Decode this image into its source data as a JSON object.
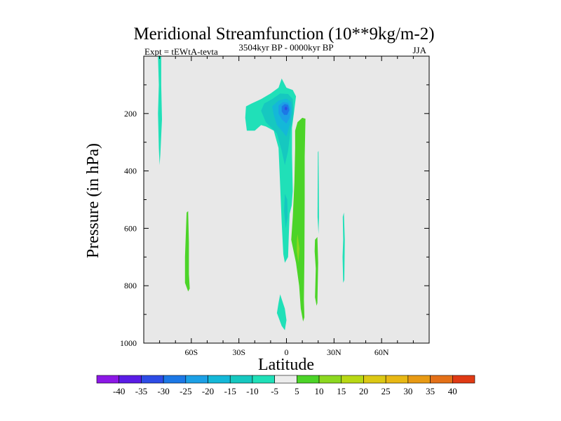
{
  "chart_data": {
    "type": "filled-contour",
    "title": "Meridional Streamfunction (10**9kg/m-2)",
    "subtitle": "3504kyr BP - 0000kyr BP",
    "left_label": "Expt = tEWtA-tevta",
    "right_label": "JJA",
    "xlabel": "Latitude",
    "ylabel": "Pressure (in hPa)",
    "xlim": [
      -90,
      90
    ],
    "ylim": [
      1000,
      0
    ],
    "x_ticks": [
      {
        "value": -60,
        "label": "60S"
      },
      {
        "value": -30,
        "label": "30S"
      },
      {
        "value": 0,
        "label": "0"
      },
      {
        "value": 30,
        "label": "30N"
      },
      {
        "value": 60,
        "label": "60N"
      }
    ],
    "y_ticks": [
      {
        "value": 200,
        "label": "200"
      },
      {
        "value": 400,
        "label": "400"
      },
      {
        "value": 600,
        "label": "600"
      },
      {
        "value": 800,
        "label": "800"
      },
      {
        "value": 1000,
        "label": "1000"
      }
    ],
    "background_color": "#e8e8e8",
    "colorbar": {
      "levels": [
        "-40",
        "-35",
        "-30",
        "-25",
        "-20",
        "-15",
        "-10",
        "-5",
        "5",
        "10",
        "15",
        "20",
        "25",
        "30",
        "35",
        "40"
      ],
      "colors": [
        "#8c18e6",
        "#5a1ce6",
        "#2d4ce6",
        "#1c78e6",
        "#1ca0e6",
        "#14b8d8",
        "#16c8c0",
        "#20e0b8",
        "#ececec",
        "#4cd428",
        "#8cd820",
        "#b8d814",
        "#dcc814",
        "#e8b814",
        "#e89a14",
        "#e47018",
        "#e03a14"
      ]
    },
    "regions": [
      {
        "name": "far-south-upper-negative",
        "value": -5,
        "color": "#20e0b8",
        "points": [
          [
            -81,
            0
          ],
          [
            -79,
            0
          ],
          [
            -79,
            100
          ],
          [
            -78.5,
            220
          ],
          [
            -79.5,
            340
          ],
          [
            -80,
            380
          ],
          [
            -80.5,
            320
          ],
          [
            -81,
            200
          ],
          [
            -80.5,
            100
          ]
        ]
      },
      {
        "name": "upper-tropical-negative",
        "value": -5,
        "color": "#20e0b8",
        "points": [
          [
            -26,
            215
          ],
          [
            -25.5,
            175
          ],
          [
            -22,
            165
          ],
          [
            -16,
            150
          ],
          [
            -10,
            130
          ],
          [
            -5,
            110
          ],
          [
            -3,
            78
          ],
          [
            0,
            110
          ],
          [
            4,
            118
          ],
          [
            6,
            140
          ],
          [
            5,
            185
          ],
          [
            3.5,
            250
          ],
          [
            3.5,
            340
          ],
          [
            4,
            470
          ],
          [
            3.3,
            520
          ],
          [
            2,
            550
          ],
          [
            1.5,
            620
          ],
          [
            1,
            700
          ],
          [
            -1,
            720
          ],
          [
            -2,
            690
          ],
          [
            -3,
            580
          ],
          [
            -4,
            450
          ],
          [
            -5,
            320
          ],
          [
            -8,
            260
          ],
          [
            -13,
            245
          ],
          [
            -16,
            240
          ],
          [
            -20,
            260
          ],
          [
            -25,
            260
          ]
        ]
      },
      {
        "name": "upper-tropical-negative-core-1",
        "value": -10,
        "color": "#16c8c0",
        "points": [
          [
            -13,
            230
          ],
          [
            -16,
            190
          ],
          [
            -14,
            165
          ],
          [
            -9,
            150
          ],
          [
            -4,
            130
          ],
          [
            1,
            132
          ],
          [
            4,
            150
          ],
          [
            4.5,
            200
          ],
          [
            2.5,
            260
          ],
          [
            1,
            330
          ],
          [
            -1,
            380
          ],
          [
            -3,
            330
          ],
          [
            -6,
            270
          ]
        ]
      },
      {
        "name": "upper-tropical-negative-core-2",
        "value": -15,
        "color": "#14b8d8",
        "points": [
          [
            -8,
            205
          ],
          [
            -9,
            175
          ],
          [
            -5,
            155
          ],
          [
            0,
            148
          ],
          [
            3,
            160
          ],
          [
            3.5,
            195
          ],
          [
            2,
            240
          ],
          [
            0,
            280
          ],
          [
            -3,
            260
          ],
          [
            -6,
            240
          ]
        ]
      },
      {
        "name": "upper-tropical-negative-core-3",
        "value": -20,
        "color": "#1ca0e6",
        "points": [
          [
            -5,
            200
          ],
          [
            -5,
            172
          ],
          [
            -2,
            160
          ],
          [
            1,
            162
          ],
          [
            2.5,
            180
          ],
          [
            2,
            215
          ],
          [
            0,
            235
          ],
          [
            -3,
            220
          ]
        ]
      },
      {
        "name": "upper-tropical-negative-core-4",
        "value": -25,
        "color": "#1c78e6",
        "points": [
          [
            -3,
            193
          ],
          [
            -3,
            175
          ],
          [
            -1,
            167
          ],
          [
            1,
            170
          ],
          [
            1.8,
            188
          ],
          [
            0.5,
            205
          ],
          [
            -1.5,
            205
          ]
        ]
      },
      {
        "name": "upper-tropical-negative-core-5",
        "value": -30,
        "color": "#2d4ce6",
        "points": [
          [
            -1.2,
            186
          ],
          [
            -1,
            178
          ],
          [
            0,
            176
          ],
          [
            0.6,
            183
          ],
          [
            0,
            189
          ]
        ]
      },
      {
        "name": "mid-tropical-negative-patch",
        "value": -10,
        "color": "#16c8c0",
        "points": [
          [
            -1,
            480
          ],
          [
            -1.5,
            540
          ],
          [
            -0.5,
            600
          ],
          [
            0.8,
            560
          ],
          [
            0.5,
            500
          ]
        ]
      },
      {
        "name": "lower-tropical-negative",
        "value": -5,
        "color": "#20e0b8",
        "points": [
          [
            -4,
            830
          ],
          [
            -1,
            880
          ],
          [
            0,
            920
          ],
          [
            -1,
            955
          ],
          [
            -3,
            940
          ],
          [
            -6,
            895
          ],
          [
            -5,
            860
          ]
        ]
      },
      {
        "name": "tropical-positive-column",
        "value": 5,
        "color": "#4cd428",
        "points": [
          [
            7,
            230
          ],
          [
            10,
            215
          ],
          [
            12,
            218
          ],
          [
            11.5,
            350
          ],
          [
            11.5,
            500
          ],
          [
            11.3,
            700
          ],
          [
            11,
            850
          ],
          [
            11.3,
            910
          ],
          [
            10.5,
            925
          ],
          [
            9,
            880
          ],
          [
            8,
            800
          ],
          [
            6,
            720
          ],
          [
            3,
            640
          ],
          [
            4,
            560
          ],
          [
            5,
            440
          ],
          [
            5.5,
            320
          ],
          [
            5.5,
            260
          ]
        ]
      },
      {
        "name": "tropical-positive-core",
        "value": 10,
        "color": "#8cd820",
        "points": [
          [
            7,
            620
          ],
          [
            8.2,
            670
          ],
          [
            7.5,
            720
          ],
          [
            6.5,
            680
          ],
          [
            6.6,
            640
          ]
        ]
      },
      {
        "name": "south-midlevel-positive",
        "value": 5,
        "color": "#4cd428",
        "points": [
          [
            -63,
            545
          ],
          [
            -62,
            540
          ],
          [
            -61.5,
            650
          ],
          [
            -61.5,
            760
          ],
          [
            -61,
            810
          ],
          [
            -62,
            820
          ],
          [
            -64,
            790
          ],
          [
            -64,
            700
          ]
        ]
      },
      {
        "name": "north-positive-patch",
        "value": 5,
        "color": "#4cd428",
        "points": [
          [
            18,
            640
          ],
          [
            19.5,
            630
          ],
          [
            20,
            720
          ],
          [
            19.5,
            860
          ],
          [
            19,
            870
          ],
          [
            18,
            840
          ],
          [
            18.5,
            740
          ],
          [
            17.8,
            680
          ]
        ]
      },
      {
        "name": "north-upper-negative",
        "value": -5,
        "color": "#20e0b8",
        "points": [
          [
            19.8,
            335
          ],
          [
            20.2,
            330
          ],
          [
            20.4,
            450
          ],
          [
            20.5,
            560
          ],
          [
            20.2,
            620
          ],
          [
            19.6,
            560
          ],
          [
            19.7,
            450
          ]
        ]
      },
      {
        "name": "north-mid-negative",
        "value": -5,
        "color": "#20e0b8",
        "points": [
          [
            35.5,
            560
          ],
          [
            36.2,
            545
          ],
          [
            36.8,
            640
          ],
          [
            36.5,
            780
          ],
          [
            35.8,
            790
          ],
          [
            35.4,
            700
          ],
          [
            35.8,
            640
          ]
        ]
      }
    ]
  }
}
